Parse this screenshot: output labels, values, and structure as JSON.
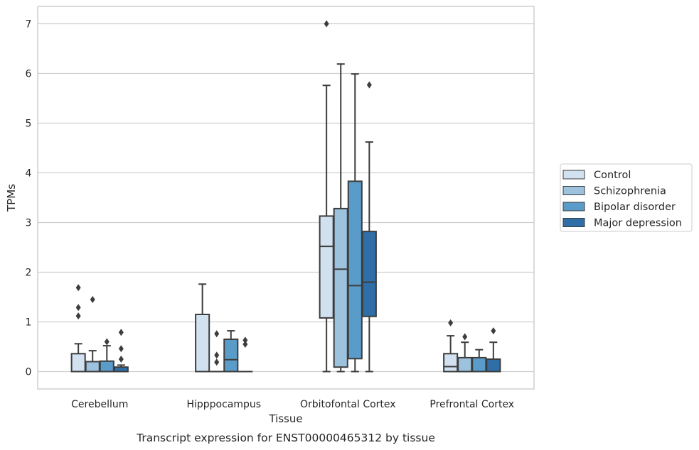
{
  "caption": "Transcript expression for ENST00000465312 by tissue",
  "colors": {
    "Control": "#d2e1f0",
    "Schizophrenia": "#9cc2de",
    "Bipolar disorder": "#5a9cc9",
    "Major depression": "#2f6ea6",
    "line": "#3d3d3d",
    "grid": "#cfcfcf",
    "frame": "#cfcfcf"
  },
  "chart_data": {
    "type": "box",
    "xlabel": "Tissue",
    "ylabel": "TPMs",
    "ylim": [
      -0.35,
      7.35
    ],
    "yticks": [
      0,
      1,
      2,
      3,
      4,
      5,
      6,
      7
    ],
    "grid": true,
    "legend_position": "right",
    "categories": [
      "Cerebellum",
      "Hipppocampus",
      "Orbitofontal Cortex",
      "Prefrontal Cortex"
    ],
    "series": [
      {
        "name": "Control",
        "boxes": [
          {
            "whisker_low": 0,
            "q1": 0,
            "median": 0,
            "q3": 0.36,
            "whisker_high": 0.56,
            "outliers": [
              1.12,
              1.29,
              1.69
            ]
          },
          {
            "whisker_low": 0,
            "q1": 0,
            "median": 0,
            "q3": 1.15,
            "whisker_high": 1.76,
            "outliers": []
          },
          {
            "whisker_low": 0,
            "q1": 1.08,
            "median": 2.52,
            "q3": 3.13,
            "whisker_high": 5.76,
            "outliers": [
              7.0
            ]
          },
          {
            "whisker_low": 0,
            "q1": 0,
            "median": 0.1,
            "q3": 0.36,
            "whisker_high": 0.72,
            "outliers": [
              0.98
            ]
          }
        ]
      },
      {
        "name": "Schizophrenia",
        "boxes": [
          {
            "whisker_low": 0,
            "q1": 0,
            "median": 0,
            "q3": 0.2,
            "whisker_high": 0.42,
            "outliers": [
              1.45
            ]
          },
          {
            "whisker_low": 0,
            "q1": 0,
            "median": 0,
            "q3": 0,
            "whisker_high": 0,
            "outliers": [
              0.19,
              0.33,
              0.76
            ]
          },
          {
            "whisker_low": 0,
            "q1": 0.09,
            "median": 2.06,
            "q3": 3.28,
            "whisker_high": 6.19,
            "outliers": []
          },
          {
            "whisker_low": 0,
            "q1": 0,
            "median": 0,
            "q3": 0.28,
            "whisker_high": 0.59,
            "outliers": [
              0.7
            ]
          }
        ]
      },
      {
        "name": "Bipolar disorder",
        "boxes": [
          {
            "whisker_low": 0,
            "q1": 0,
            "median": 0,
            "q3": 0.21,
            "whisker_high": 0.52,
            "outliers": [
              0.6
            ]
          },
          {
            "whisker_low": 0,
            "q1": 0,
            "median": 0.24,
            "q3": 0.65,
            "whisker_high": 0.82,
            "outliers": []
          },
          {
            "whisker_low": 0,
            "q1": 0.26,
            "median": 1.73,
            "q3": 3.83,
            "whisker_high": 5.99,
            "outliers": []
          },
          {
            "whisker_low": 0,
            "q1": 0,
            "median": 0,
            "q3": 0.28,
            "whisker_high": 0.44,
            "outliers": []
          }
        ]
      },
      {
        "name": "Major depression",
        "boxes": [
          {
            "whisker_low": 0,
            "q1": 0,
            "median": 0,
            "q3": 0.09,
            "whisker_high": 0.13,
            "outliers": [
              0.25,
              0.46,
              0.79
            ]
          },
          {
            "whisker_low": 0,
            "q1": 0,
            "median": 0,
            "q3": 0,
            "whisker_high": 0,
            "outliers": [
              0.55,
              0.63
            ]
          },
          {
            "whisker_low": 0,
            "q1": 1.11,
            "median": 1.8,
            "q3": 2.82,
            "whisker_high": 4.62,
            "outliers": [
              5.77
            ]
          },
          {
            "whisker_low": 0,
            "q1": 0,
            "median": 0,
            "q3": 0.25,
            "whisker_high": 0.59,
            "outliers": [
              0.82
            ]
          }
        ]
      }
    ]
  }
}
